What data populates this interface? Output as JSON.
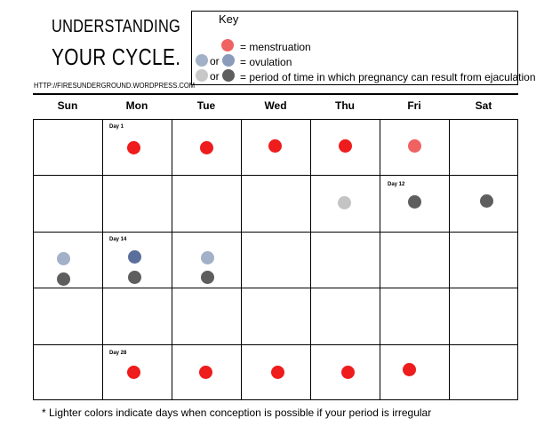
{
  "title": {
    "line1": "UNDERSTANDING",
    "line2": "YOUR  CYCLE."
  },
  "url": "HTTP://FIRESUNDERGROUND.WORDPRESS.COM",
  "key": {
    "title": "Key",
    "menstruation": "= menstruation",
    "or1": "or",
    "ovulation": "= ovulation",
    "or2": "or",
    "fertile": "= period of time in which pregnancy can result from ejaculation"
  },
  "colors": {
    "menstruation": "#ee1c1c",
    "menstruation_light": "#f06262",
    "ovulation": "#5a6f9b",
    "ovulation_light": "#a3b1c8",
    "fertile": "#5e5e5e",
    "fertile_light": "#c4c4c4"
  },
  "days": [
    "Sun",
    "Mon",
    "Tue",
    "Wed",
    "Thu",
    "Fri",
    "Sat"
  ],
  "day_labels": {
    "day1": "Day 1",
    "day12": "Day 12",
    "day14": "Day 14",
    "day28": "Day 28"
  },
  "footnote": "* Lighter colors indicate days when conception is possible if your period is irregular"
}
